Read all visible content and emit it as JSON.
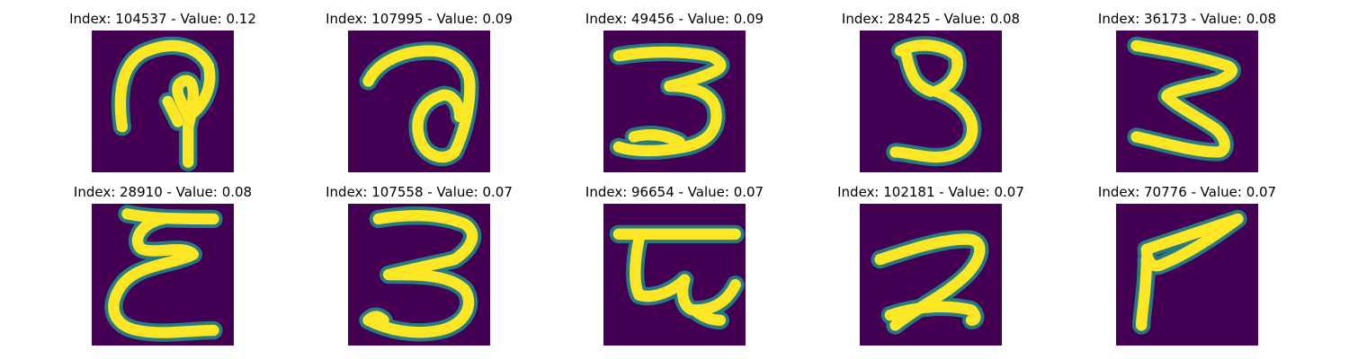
{
  "colors": {
    "background": "#440154",
    "mid": "#21918c",
    "ink": "#fde725"
  },
  "panels": [
    {
      "index": "104537",
      "value": "0.12",
      "title": "Index: 104537 - Value: 0.12"
    },
    {
      "index": "107995",
      "value": "0.09",
      "title": "Index: 107995 - Value: 0.09"
    },
    {
      "index": "49456",
      "value": "0.09",
      "title": "Index: 49456 - Value: 0.09"
    },
    {
      "index": "28425",
      "value": "0.08",
      "title": "Index: 28425 - Value: 0.08"
    },
    {
      "index": "36173",
      "value": "0.08",
      "title": "Index: 36173 - Value: 0.08"
    },
    {
      "index": "28910",
      "value": "0.08",
      "title": "Index: 28910 - Value: 0.08"
    },
    {
      "index": "107558",
      "value": "0.07",
      "title": "Index: 107558 - Value: 0.07"
    },
    {
      "index": "96654",
      "value": "0.07",
      "title": "Index: 96654 - Value: 0.07"
    },
    {
      "index": "102181",
      "value": "0.07",
      "title": "Index: 102181 - Value: 0.07"
    },
    {
      "index": "70776",
      "value": "0.07",
      "title": "Index: 70776 - Value: 0.07"
    }
  ]
}
